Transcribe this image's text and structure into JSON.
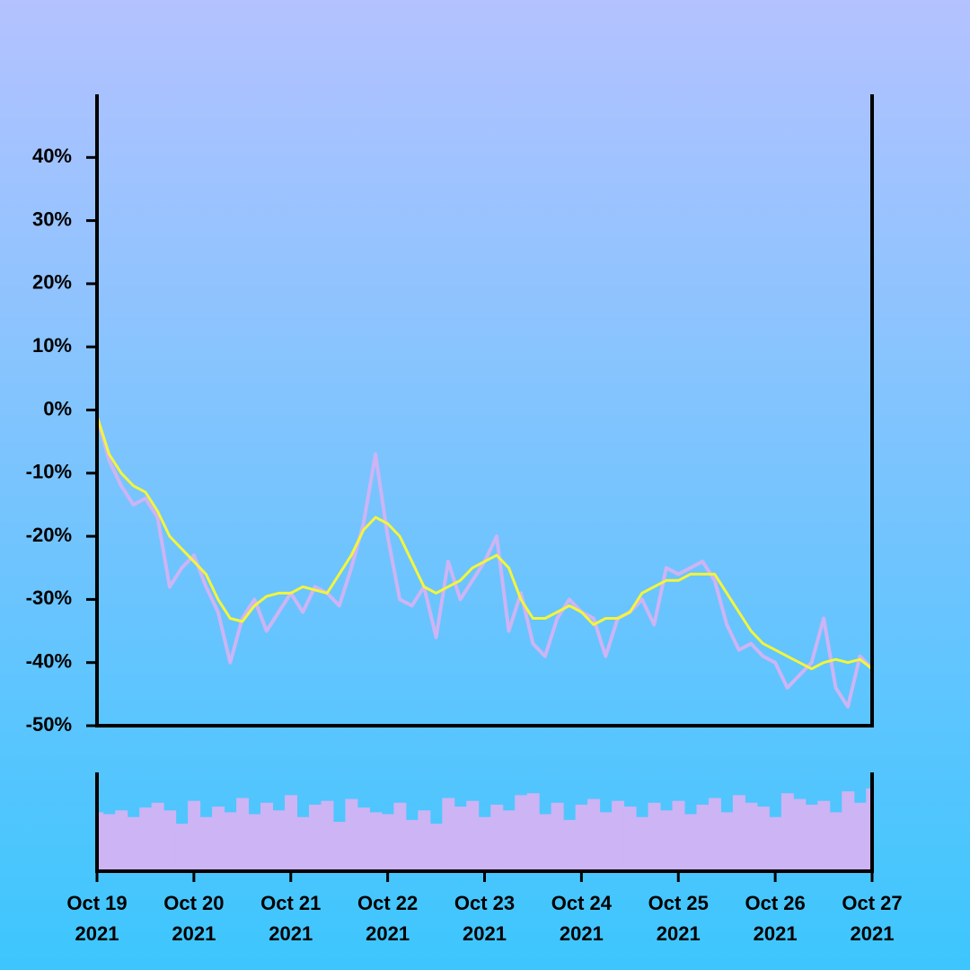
{
  "chart_data": [
    {
      "type": "line",
      "xlim": [
        "2021-10-19",
        "2021-10-27"
      ],
      "ylim": [
        -50,
        50
      ],
      "yticks": [
        {
          "value": -50,
          "label": "-50%"
        },
        {
          "value": -40,
          "label": "-40%"
        },
        {
          "value": -30,
          "label": "-30%"
        },
        {
          "value": -20,
          "label": "-20%"
        },
        {
          "value": -10,
          "label": "-10%"
        },
        {
          "value": 0,
          "label": "0%"
        },
        {
          "value": 10,
          "label": "10%"
        },
        {
          "value": 20,
          "label": "20%"
        },
        {
          "value": 30,
          "label": "30%"
        },
        {
          "value": 40,
          "label": "40%"
        }
      ],
      "series": [
        {
          "color": "#cdb4f4",
          "values": [
            -1,
            -8,
            -12,
            -15,
            -14,
            -17,
            -28,
            -25,
            -23,
            -28,
            -32,
            -40,
            -33,
            -30,
            -35,
            -32,
            -29,
            -32,
            -28,
            -29,
            -31,
            -25,
            -18,
            -7,
            -20,
            -30,
            -31,
            -28,
            -36,
            -24,
            -30,
            -27,
            -24,
            -20,
            -35,
            -29,
            -37,
            -39,
            -33,
            -30,
            -32,
            -33,
            -39,
            -33,
            -32,
            -30,
            -34,
            -25,
            -26,
            -25,
            -24,
            -27,
            -34,
            -38,
            -37,
            -39,
            -40,
            -44,
            -42,
            -40,
            -33,
            -44,
            -47,
            -39,
            -41
          ]
        },
        {
          "color": "#f4f53a",
          "values": [
            -1,
            -7,
            -10,
            -12,
            -13,
            -16,
            -20,
            -22,
            -24,
            -26,
            -30,
            -33,
            -33.5,
            -31,
            -29.5,
            -29,
            -29,
            -28,
            -28.5,
            -29,
            -26,
            -23,
            -19,
            -17,
            -18,
            -20,
            -24,
            -28,
            -29,
            -28,
            -27,
            -25,
            -24,
            -23,
            -25,
            -30,
            -33,
            -33,
            -32,
            -31,
            -32,
            -34,
            -33,
            -33,
            -32,
            -29,
            -28,
            -27,
            -27,
            -26,
            -26,
            -26,
            -29,
            -32,
            -35,
            -37,
            -38,
            -39,
            -40,
            -41,
            -40,
            -39.5,
            -40,
            -39.5,
            -41
          ]
        }
      ]
    },
    {
      "type": "bar",
      "xlim": [
        "2021-10-19",
        "2021-10-27"
      ],
      "ylim": [
        0,
        100
      ],
      "color": "#cdb4f4",
      "xticks": [
        {
          "value": "2021-10-19",
          "label": [
            "Oct 19",
            "2021"
          ]
        },
        {
          "value": "2021-10-20",
          "label": [
            "Oct 20",
            "2021"
          ]
        },
        {
          "value": "2021-10-21",
          "label": [
            "Oct 21",
            "2021"
          ]
        },
        {
          "value": "2021-10-22",
          "label": [
            "Oct 22",
            "2021"
          ]
        },
        {
          "value": "2021-10-23",
          "label": [
            "Oct 23",
            "2021"
          ]
        },
        {
          "value": "2021-10-24",
          "label": [
            "Oct 24",
            "2021"
          ]
        },
        {
          "value": "2021-10-25",
          "label": [
            "Oct 25",
            "2021"
          ]
        },
        {
          "value": "2021-10-26",
          "label": [
            "Oct 26",
            "2021"
          ]
        },
        {
          "value": "2021-10-27",
          "label": [
            "Oct 27",
            "2021"
          ]
        }
      ],
      "values": [
        60,
        58,
        62,
        55,
        65,
        70,
        62,
        48,
        72,
        55,
        66,
        60,
        75,
        58,
        70,
        62,
        78,
        55,
        68,
        72,
        50,
        74,
        65,
        60,
        58,
        70,
        52,
        62,
        48,
        75,
        66,
        72,
        55,
        68,
        62,
        78,
        80,
        58,
        70,
        52,
        68,
        74,
        60,
        72,
        66,
        55,
        70,
        62,
        72,
        58,
        68,
        75,
        60,
        78,
        70,
        66,
        55,
        80,
        74,
        68,
        72,
        60,
        82,
        70,
        85
      ]
    }
  ]
}
